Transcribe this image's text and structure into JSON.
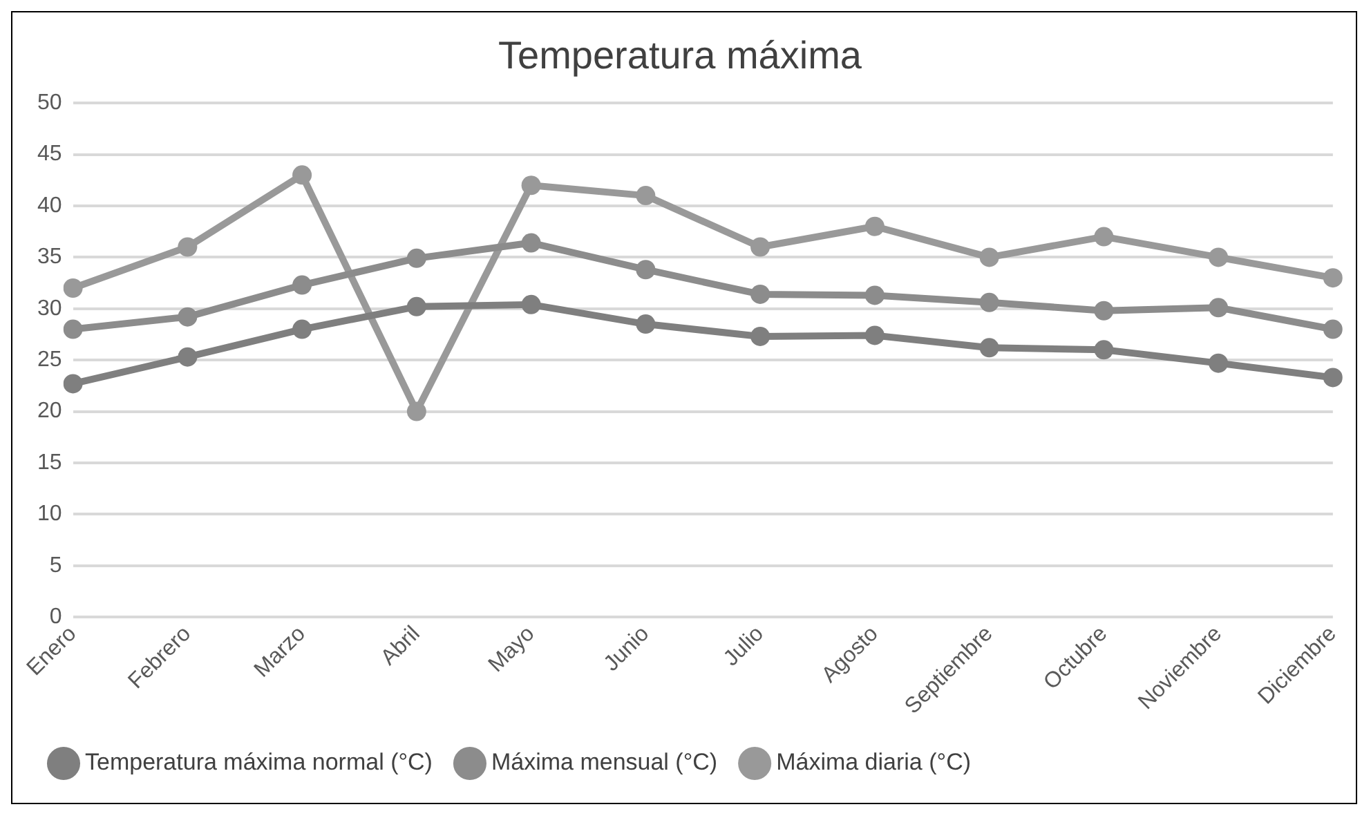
{
  "chart_data": {
    "type": "line",
    "title": "Temperatura máxima",
    "categories": [
      "Enero",
      "Febrero",
      "Marzo",
      "Abril",
      "Mayo",
      "Junio",
      "Julio",
      "Agosto",
      "Septiembre",
      "Octubre",
      "Noviembre",
      "Diciembre"
    ],
    "series": [
      {
        "name": "Temperatura máxima normal (°C)",
        "color": "#7f7f7f",
        "values": [
          22.7,
          25.3,
          28,
          30.2,
          30.4,
          28.5,
          27.3,
          27.4,
          26.2,
          26,
          24.7,
          23.3
        ]
      },
      {
        "name": "Máxima mensual (°C)",
        "color": "#8c8c8c",
        "values": [
          28,
          29.2,
          32.3,
          34.9,
          36.4,
          33.8,
          31.4,
          31.3,
          30.6,
          29.8,
          30.1,
          28
        ]
      },
      {
        "name": "Máxima diaria (°C)",
        "color": "#999999",
        "values": [
          32,
          36,
          43,
          20,
          42,
          41,
          36,
          38,
          35,
          37,
          35,
          33
        ]
      }
    ],
    "ylim": [
      0,
      50
    ],
    "yticks": [
      0,
      5,
      10,
      15,
      20,
      25,
      30,
      35,
      40,
      45,
      50
    ],
    "grid": "y",
    "legend": "bottom",
    "marker": "circle",
    "line_style": "solid"
  }
}
